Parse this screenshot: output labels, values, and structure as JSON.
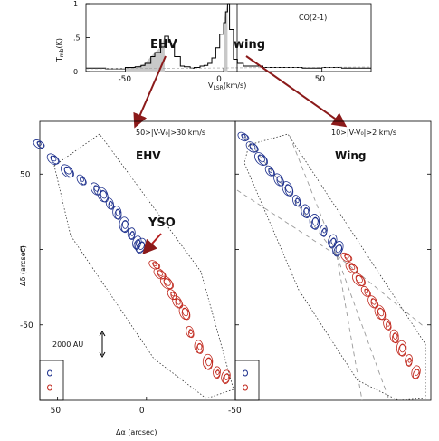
{
  "colors": {
    "blue": "#1c2f8c",
    "red": "#c0271c",
    "arrow": "#8b1a1a",
    "fill": "#c8c8c8",
    "gray_line": "#999999"
  },
  "chart_data": [
    {
      "type": "line",
      "title": "CO(2-1)",
      "xlabel": "V_LSR (km/s)",
      "ylabel": "T_mb (K)",
      "xlim": [
        -70,
        75
      ],
      "ylim": [
        0,
        1
      ],
      "xticks": [
        -50,
        0,
        50
      ],
      "yticks": [
        0,
        0.5,
        1
      ],
      "x": [
        -70,
        -60,
        -50,
        -45,
        -42,
        -40,
        -37,
        -35,
        -32,
        -30,
        -28,
        -25,
        -22,
        -20,
        -17,
        -15,
        -12,
        -10,
        -8,
        -6,
        -4,
        -2,
        0,
        1,
        2,
        3,
        5,
        7,
        10,
        15,
        20,
        30,
        40,
        50,
        60,
        75
      ],
      "y": [
        0.05,
        0.04,
        0.06,
        0.07,
        0.09,
        0.12,
        0.22,
        0.28,
        0.36,
        0.52,
        0.42,
        0.22,
        0.08,
        0.07,
        0.05,
        0.06,
        0.08,
        0.09,
        0.12,
        0.2,
        0.35,
        0.55,
        0.72,
        0.88,
        1.0,
        0.62,
        0.18,
        0.12,
        0.08,
        0.08,
        0.06,
        0.06,
        0.05,
        0.06,
        0.05,
        0.05
      ],
      "shaded_ranges": [
        [
          -30,
          -50
        ],
        [
          0,
          2
        ]
      ],
      "region_labels": [
        "EHV",
        "wing"
      ]
    },
    {
      "type": "scatter",
      "panel": "EHV",
      "velocity_range": "50>|V-V0|>30 km/s",
      "xlabel": "Δα (arcsec)",
      "ylabel": "Δδ (arcsec)",
      "xlim": [
        60,
        -50
      ],
      "ylim": [
        -100,
        85
      ],
      "xticks": [
        50,
        0,
        -50
      ],
      "yticks": [
        50,
        0,
        -50
      ],
      "annotations": [
        "YSO",
        "2000 AU"
      ],
      "series": [
        {
          "color": "blue",
          "x": [
            60,
            52,
            44,
            36,
            28,
            24,
            20,
            16,
            12,
            8,
            5,
            3
          ],
          "y": [
            70,
            60,
            52,
            46,
            40,
            36,
            30,
            24,
            16,
            10,
            4,
            2
          ]
        },
        {
          "color": "red",
          "x": [
            -5,
            -8,
            -12,
            -15,
            -18,
            -22,
            -25,
            -30,
            -35,
            -40,
            -45
          ],
          "y": [
            -10,
            -16,
            -22,
            -30,
            -35,
            -42,
            -55,
            -65,
            -75,
            -82,
            -85
          ]
        }
      ]
    },
    {
      "type": "scatter",
      "panel": "Wing",
      "velocity_range": "10>|V-V0|>2 km/s",
      "xlabel": "",
      "ylabel": "",
      "series": [
        {
          "color": "blue",
          "x": [
            55,
            50,
            45,
            40,
            35,
            30,
            25,
            20,
            15,
            10,
            5,
            2
          ],
          "y": [
            75,
            68,
            60,
            52,
            46,
            40,
            32,
            25,
            18,
            12,
            5,
            0
          ]
        },
        {
          "color": "red",
          "x": [
            -3,
            -6,
            -10,
            -14,
            -18,
            -22,
            -26,
            -30,
            -34,
            -38,
            -42
          ],
          "y": [
            -5,
            -12,
            -20,
            -28,
            -35,
            -42,
            -50,
            -58,
            -66,
            -74,
            -82
          ]
        }
      ]
    }
  ],
  "labels": {
    "ehv_top": "EHV",
    "wing_top": "wing",
    "spec_title": "CO(2-1)",
    "spec_xlabel": "V",
    "spec_xlabel_sub": "LSR",
    "spec_xlabel_unit": "(km/s)",
    "spec_ylabel": "T",
    "spec_ylabel_sub": "mb",
    "spec_ylabel_unit": "(K)",
    "panel1_range": "50>|V-V₀|>30 km/s",
    "panel2_range": "10>|V-V₀|>2 km/s",
    "panel1_name": "EHV",
    "panel2_name": "Wing",
    "yso": "YSO",
    "au": "2000 AU",
    "xlabel": "Δα (arcsec)",
    "ylabel": "Δδ (arcsec)",
    "spec_xticks": [
      "-50",
      "0",
      "50"
    ],
    "spec_yticks": [
      "0",
      ".5",
      "1"
    ],
    "map_yticks": [
      "50",
      "0",
      "-50"
    ],
    "map_xticks": [
      "50",
      "0",
      "-50"
    ]
  }
}
